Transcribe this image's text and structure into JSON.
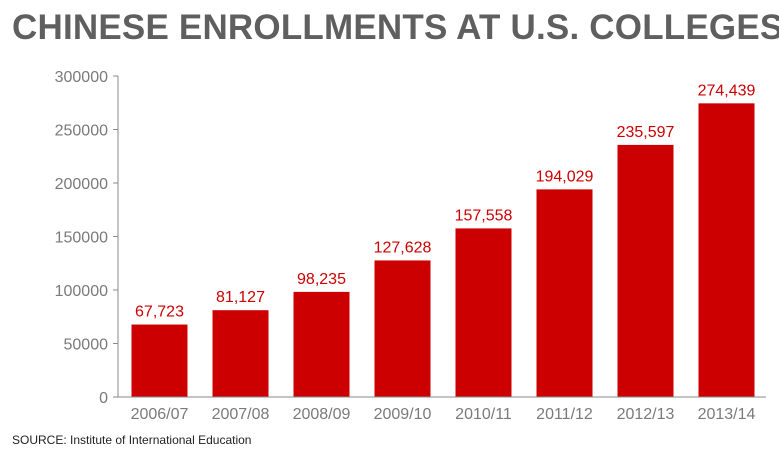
{
  "chart_data": {
    "type": "bar",
    "title": "CHINESE ENROLLMENTS AT U.S. COLLEGES",
    "categories": [
      "2006/07",
      "2007/08",
      "2008/09",
      "2009/10",
      "2010/11",
      "2011/12",
      "2012/13",
      "2013/14"
    ],
    "values": [
      67723,
      81127,
      98235,
      127628,
      157558,
      194029,
      235597,
      274439
    ],
    "value_labels": [
      "67,723",
      "81,127",
      "98,235",
      "127,628",
      "157,558",
      "194,029",
      "235,597",
      "274,439"
    ],
    "ylim": [
      0,
      300000
    ],
    "yticks": [
      0,
      50000,
      100000,
      150000,
      200000,
      250000,
      300000
    ],
    "ytick_labels": [
      "0",
      "50000",
      "100000",
      "150000",
      "200000",
      "250000",
      "300000"
    ],
    "bar_color": "#cc0000",
    "label_color": "#cc0000",
    "grid": false,
    "source": "SOURCE: Institute of International Education"
  }
}
